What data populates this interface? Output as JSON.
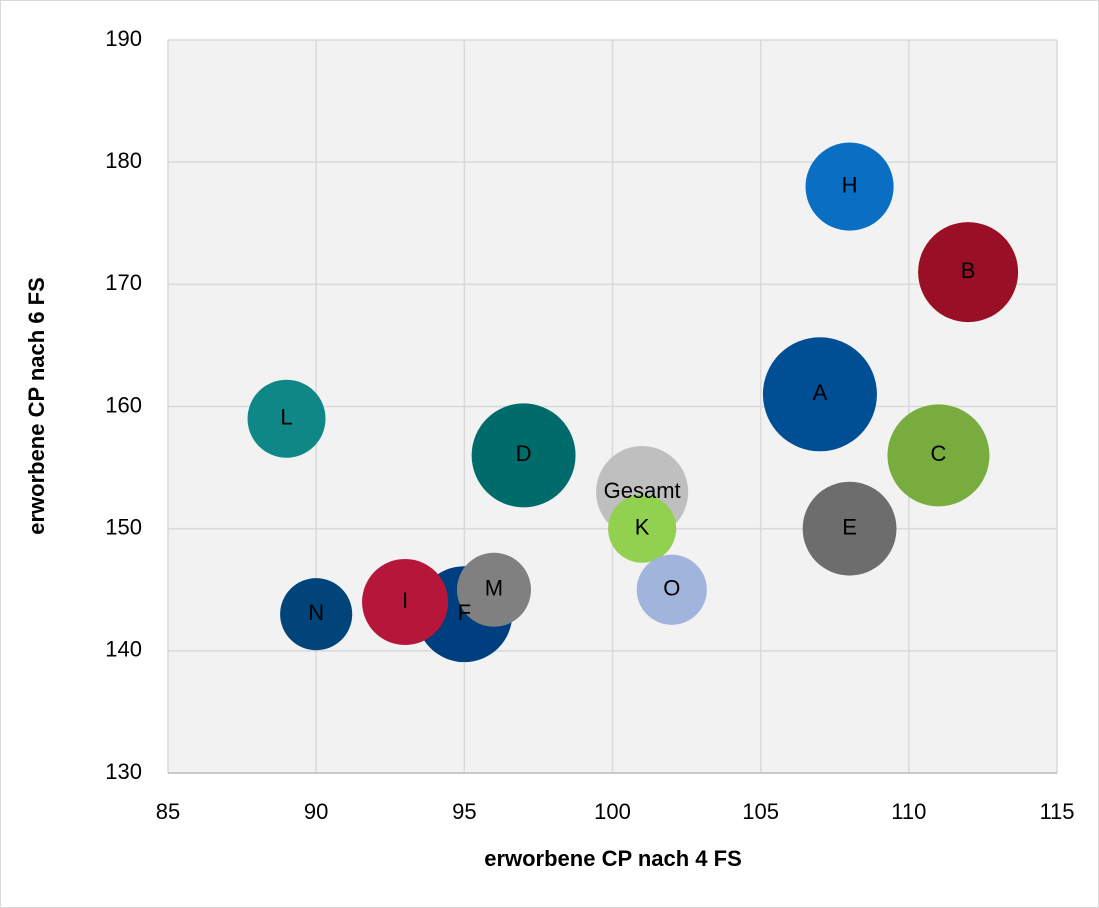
{
  "chart_data": {
    "type": "bubble",
    "xlabel": "erworbene CP nach 4 FS",
    "ylabel": "erworbene CP nach 6 FS",
    "xlim": [
      85,
      115
    ],
    "xticks": [
      85,
      90,
      95,
      100,
      105,
      110,
      115
    ],
    "ylim": [
      130,
      190
    ],
    "yticks": [
      130,
      140,
      150,
      160,
      170,
      180,
      190
    ],
    "grid": true,
    "points": [
      {
        "label": "Gesamt",
        "x": 101,
        "y": 153,
        "size": 21.2,
        "color": "#bfbfbf"
      },
      {
        "label": "A",
        "x": 107,
        "y": 161,
        "size": 32.5,
        "color": "#004f94"
      },
      {
        "label": "B",
        "x": 112,
        "y": 171,
        "size": 25,
        "color": "#990f25"
      },
      {
        "label": "C",
        "x": 111,
        "y": 156,
        "size": 26,
        "color": "#78ac3f"
      },
      {
        "label": "D",
        "x": 97,
        "y": 156,
        "size": 27,
        "color": "#006b6b"
      },
      {
        "label": "E",
        "x": 108,
        "y": 150,
        "size": 22,
        "color": "#6d6d6d"
      },
      {
        "label": "F",
        "x": 95,
        "y": 143,
        "size": 23,
        "color": "#003f7f"
      },
      {
        "label": "H",
        "x": 108,
        "y": 178,
        "size": 19.4,
        "color": "#0a6fc2"
      },
      {
        "label": "I",
        "x": 93,
        "y": 144,
        "size": 18.5,
        "color": "#b5163a"
      },
      {
        "label": "K",
        "x": 101,
        "y": 150,
        "size": 11.6,
        "color": "#92d050"
      },
      {
        "label": "L",
        "x": 89,
        "y": 159,
        "size": 15.2,
        "color": "#0f8787"
      },
      {
        "label": "M",
        "x": 96,
        "y": 145,
        "size": 13.7,
        "color": "#808080"
      },
      {
        "label": "N",
        "x": 90,
        "y": 143,
        "size": 13,
        "color": "#00447a"
      },
      {
        "label": "O",
        "x": 102,
        "y": 145,
        "size": 12.3,
        "color": "#a1b5dc"
      }
    ]
  }
}
